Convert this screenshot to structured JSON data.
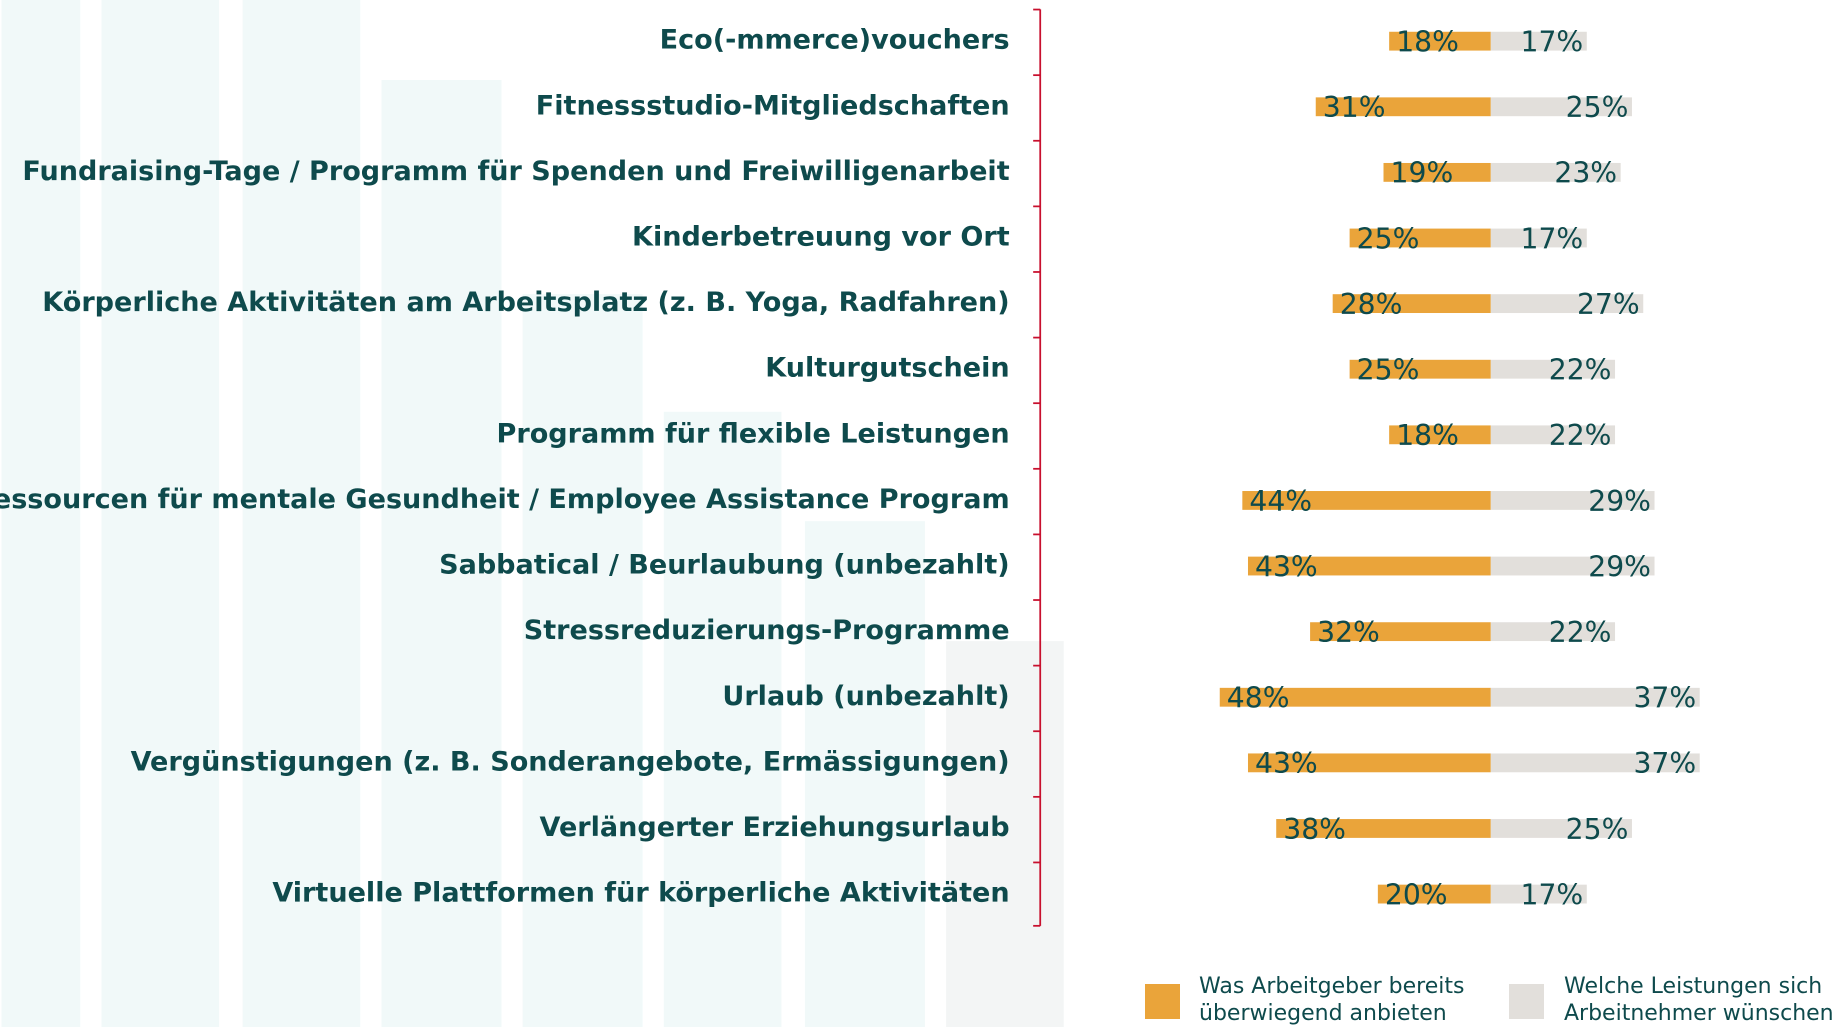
{
  "chart_data": {
    "type": "bar",
    "categories": [
      "Eco(-mmerce)vouchers",
      "Fitnessstudio-Mitgliedschaften",
      "Fundraising-Tage / Programm für Spenden und Freiwilligenarbeit",
      "Kinderbetreuung vor Ort",
      "Körperliche Aktivitäten am Arbeitsplatz (z. B. Yoga, Radfahren)",
      "Kulturgutschein",
      "Programm für flexible Leistungen",
      "Ressourcen für mentale Gesundheit / Employee Assistance Program",
      "Sabbatical / Beurlaubung (unbezahlt)",
      "Stressreduzierungs-Programme",
      "Urlaub (unbezahlt)",
      "Vergünstigungen (z. B. Sonderangebote, Ermässigungen)",
      "Verlängerter Erziehungsurlaub",
      "Virtuelle Plattformen für körperliche Aktivitäten"
    ],
    "series": [
      {
        "name": "Was Arbeitgeber bereits überwiegend anbieten",
        "color": "#eaa43a",
        "values": [
          18,
          31,
          19,
          25,
          28,
          25,
          18,
          44,
          43,
          32,
          48,
          43,
          38,
          20
        ],
        "value_labels": [
          "18%",
          "31%",
          "19%",
          "25%",
          "28%",
          "25%",
          "18%",
          "44%",
          "43%",
          "32%",
          "48%",
          "43%",
          "38%",
          "20%"
        ]
      },
      {
        "name": "Welche Leistungen sich Arbeitnehmer wünschen",
        "color": "#e2dfdb",
        "values": [
          17,
          25,
          23,
          17,
          27,
          22,
          22,
          29,
          29,
          22,
          37,
          37,
          25,
          17
        ],
        "value_labels": [
          "17%",
          "25%",
          "23%",
          "17%",
          "27%",
          "22%",
          "22%",
          "29%",
          "29%",
          "22%",
          "37%",
          "37%",
          "25%",
          "17%"
        ]
      }
    ]
  }
}
